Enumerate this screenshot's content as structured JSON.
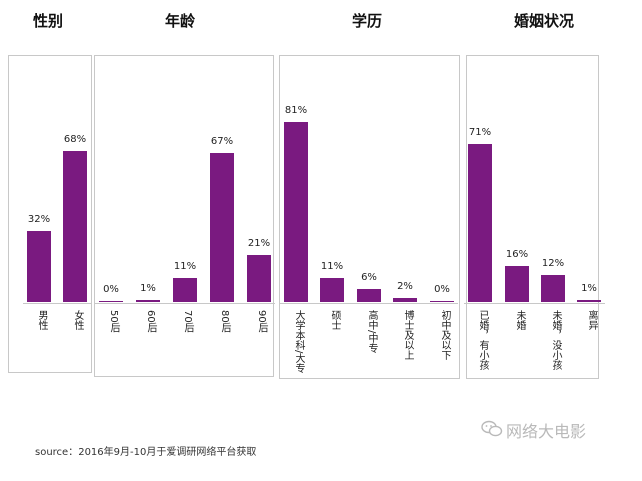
{
  "chart_data": [
    {
      "type": "bar",
      "title": "性别",
      "categories": [
        "男性",
        "女性"
      ],
      "values": [
        32,
        68
      ],
      "value_labels": [
        "32%",
        "68%"
      ],
      "ylim": [
        0,
        100
      ]
    },
    {
      "type": "bar",
      "title": "年龄",
      "categories": [
        "50后",
        "60后",
        "70后",
        "80后",
        "90后"
      ],
      "values": [
        0,
        1,
        11,
        67,
        21
      ],
      "value_labels": [
        "0%",
        "1%",
        "11%",
        "67%",
        "21%"
      ],
      "ylim": [
        0,
        100
      ]
    },
    {
      "type": "bar",
      "title": "学历",
      "categories": [
        "大学本科/大专",
        "硕士",
        "高中/中专",
        "博士及以上",
        "初中及以下"
      ],
      "values": [
        81,
        11,
        6,
        2,
        0
      ],
      "value_labels": [
        "81%",
        "11%",
        "6%",
        "2%",
        "0%"
      ],
      "ylim": [
        0,
        100
      ]
    },
    {
      "type": "bar",
      "title": "婚姻状况",
      "categories": [
        "已婚，有小孩",
        "未婚",
        "未婚，没小孩",
        "离异"
      ],
      "values": [
        71,
        16,
        12,
        1
      ],
      "value_labels": [
        "71%",
        "16%",
        "12%",
        "1%"
      ],
      "ylim": [
        0,
        100
      ]
    }
  ],
  "colors": {
    "bar": "#7a1a80",
    "panel_border": "#c8c8c8"
  },
  "source": "source：2016年9月-10月于爱调研网络平台获取",
  "watermark": "网络大电影",
  "watermark_icon": "wechat-icon"
}
